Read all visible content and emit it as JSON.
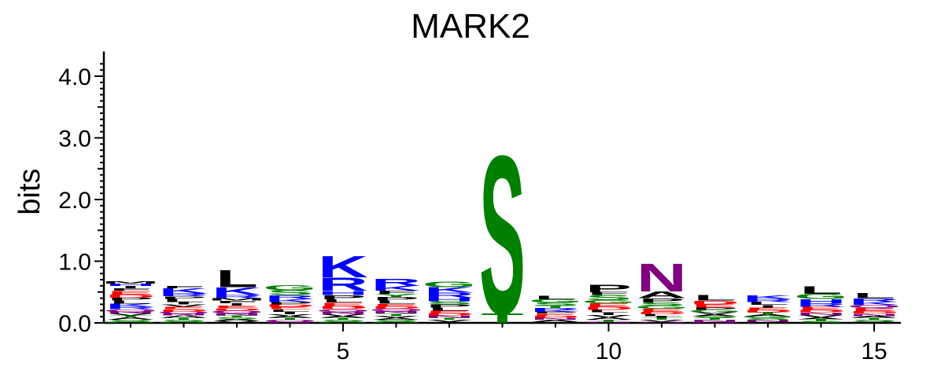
{
  "chart_data": {
    "type": "sequence-logo",
    "title": "MARK2",
    "ylabel": "bits",
    "xlabel": "",
    "ylim": [
      0,
      4.3
    ],
    "y_ticks": [
      0.0,
      1.0,
      2.0,
      3.0,
      4.0
    ],
    "y_tick_labels": [
      "0.0",
      "1.0",
      "2.0",
      "3.0",
      "4.0"
    ],
    "x_ticks": [
      5,
      10,
      15
    ],
    "x_tick_labels": [
      "5",
      "10",
      "15"
    ],
    "colors": {
      "basic": "#0000ff",
      "acidic": "#ff0000",
      "polar": "#008000",
      "amide": "#800080",
      "hydrophobic": "#000000"
    },
    "positions": [
      {
        "pos": 1,
        "stack": [
          [
            "G",
            0.02
          ],
          [
            "S",
            0.03
          ],
          [
            "A",
            0.04
          ],
          [
            "T",
            0.03
          ],
          [
            "V",
            0.03
          ],
          [
            "N",
            0.03
          ],
          [
            "Q",
            0.04
          ],
          [
            "R",
            0.04
          ],
          [
            "K",
            0.05
          ],
          [
            "L",
            0.05
          ],
          [
            "P",
            0.05
          ],
          [
            "D",
            0.05
          ],
          [
            "E",
            0.06
          ],
          [
            "F",
            0.04
          ],
          [
            "I",
            0.04
          ],
          [
            "H",
            0.04
          ],
          [
            "M",
            0.04
          ]
        ]
      },
      {
        "pos": 2,
        "stack": [
          [
            "G",
            0.02
          ],
          [
            "S",
            0.03
          ],
          [
            "T",
            0.03
          ],
          [
            "A",
            0.04
          ],
          [
            "N",
            0.03
          ],
          [
            "Q",
            0.03
          ],
          [
            "D",
            0.04
          ],
          [
            "E",
            0.04
          ],
          [
            "V",
            0.04
          ],
          [
            "I",
            0.04
          ],
          [
            "L",
            0.05
          ],
          [
            "P",
            0.04
          ],
          [
            "R",
            0.05
          ],
          [
            "K",
            0.08
          ],
          [
            "F",
            0.04
          ]
        ]
      },
      {
        "pos": 3,
        "stack": [
          [
            "V",
            0.03
          ],
          [
            "A",
            0.03
          ],
          [
            "S",
            0.03
          ],
          [
            "T",
            0.03
          ],
          [
            "N",
            0.04
          ],
          [
            "Q",
            0.04
          ],
          [
            "D",
            0.04
          ],
          [
            "E",
            0.04
          ],
          [
            "I",
            0.04
          ],
          [
            "F",
            0.04
          ],
          [
            "M",
            0.04
          ],
          [
            "R",
            0.05
          ],
          [
            "K",
            0.13
          ],
          [
            "L",
            0.29
          ]
        ]
      },
      {
        "pos": 4,
        "stack": [
          [
            "N",
            0.02
          ],
          [
            "Q",
            0.03
          ],
          [
            "T",
            0.03
          ],
          [
            "A",
            0.03
          ],
          [
            "V",
            0.03
          ],
          [
            "I",
            0.04
          ],
          [
            "L",
            0.04
          ],
          [
            "E",
            0.04
          ],
          [
            "D",
            0.04
          ],
          [
            "P",
            0.04
          ],
          [
            "K",
            0.05
          ],
          [
            "R",
            0.06
          ],
          [
            "S",
            0.08
          ],
          [
            "G",
            0.08
          ]
        ]
      },
      {
        "pos": 5,
        "stack": [
          [
            "G",
            0.02
          ],
          [
            "S",
            0.03
          ],
          [
            "T",
            0.03
          ],
          [
            "A",
            0.03
          ],
          [
            "V",
            0.03
          ],
          [
            "N",
            0.04
          ],
          [
            "Q",
            0.04
          ],
          [
            "D",
            0.05
          ],
          [
            "E",
            0.06
          ],
          [
            "L",
            0.05
          ],
          [
            "P",
            0.07
          ],
          [
            "H",
            0.07
          ],
          [
            "R",
            0.22
          ],
          [
            "K",
            0.36
          ]
        ]
      },
      {
        "pos": 6,
        "stack": [
          [
            "G",
            0.02
          ],
          [
            "S",
            0.03
          ],
          [
            "A",
            0.03
          ],
          [
            "V",
            0.03
          ],
          [
            "T",
            0.04
          ],
          [
            "N",
            0.04
          ],
          [
            "Q",
            0.04
          ],
          [
            "D",
            0.04
          ],
          [
            "E",
            0.04
          ],
          [
            "L",
            0.05
          ],
          [
            "P",
            0.06
          ],
          [
            "Y",
            0.05
          ],
          [
            "F",
            0.05
          ],
          [
            "K",
            0.08
          ],
          [
            "R",
            0.12
          ]
        ]
      },
      {
        "pos": 7,
        "stack": [
          [
            "A",
            0.02
          ],
          [
            "V",
            0.03
          ],
          [
            "T",
            0.03
          ],
          [
            "N",
            0.04
          ],
          [
            "D",
            0.04
          ],
          [
            "E",
            0.04
          ],
          [
            "L",
            0.05
          ],
          [
            "P",
            0.05
          ],
          [
            "S",
            0.05
          ],
          [
            "H",
            0.06
          ],
          [
            "R",
            0.08
          ],
          [
            "K",
            0.09
          ],
          [
            "G",
            0.09
          ]
        ]
      },
      {
        "pos": 8,
        "stack": [
          [
            "T",
            0.16
          ],
          [
            "S",
            2.64
          ]
        ]
      },
      {
        "pos": 9,
        "stack": [
          [
            "V",
            0.02
          ],
          [
            "A",
            0.03
          ],
          [
            "N",
            0.03
          ],
          [
            "D",
            0.03
          ],
          [
            "E",
            0.04
          ],
          [
            "P",
            0.03
          ],
          [
            "K",
            0.03
          ],
          [
            "R",
            0.03
          ],
          [
            "T",
            0.04
          ],
          [
            "S",
            0.05
          ],
          [
            "G",
            0.05
          ],
          [
            "L",
            0.06
          ]
        ]
      },
      {
        "pos": 10,
        "stack": [
          [
            "N",
            0.02
          ],
          [
            "T",
            0.03
          ],
          [
            "A",
            0.04
          ],
          [
            "V",
            0.04
          ],
          [
            "I",
            0.04
          ],
          [
            "L",
            0.04
          ],
          [
            "D",
            0.05
          ],
          [
            "E",
            0.06
          ],
          [
            "G",
            0.05
          ],
          [
            "S",
            0.08
          ],
          [
            "F",
            0.05
          ],
          [
            "P",
            0.13
          ]
        ]
      },
      {
        "pos": 11,
        "stack": [
          [
            "Q",
            0.02
          ],
          [
            "V",
            0.03
          ],
          [
            "T",
            0.03
          ],
          [
            "I",
            0.03
          ],
          [
            "L",
            0.03
          ],
          [
            "D",
            0.04
          ],
          [
            "E",
            0.05
          ],
          [
            "G",
            0.05
          ],
          [
            "S",
            0.05
          ],
          [
            "P",
            0.07
          ],
          [
            "A",
            0.11
          ],
          [
            "N",
            0.47
          ]
        ]
      },
      {
        "pos": 12,
        "stack": [
          [
            "Q",
            0.02
          ],
          [
            "N",
            0.03
          ],
          [
            "T",
            0.03
          ],
          [
            "S",
            0.03
          ],
          [
            "A",
            0.03
          ],
          [
            "V",
            0.03
          ],
          [
            "G",
            0.04
          ],
          [
            "P",
            0.04
          ],
          [
            "E",
            0.05
          ],
          [
            "D",
            0.06
          ],
          [
            "L",
            0.09
          ]
        ]
      },
      {
        "pos": 13,
        "stack": [
          [
            "V",
            0.02
          ],
          [
            "N",
            0.03
          ],
          [
            "S",
            0.03
          ],
          [
            "G",
            0.03
          ],
          [
            "A",
            0.03
          ],
          [
            "T",
            0.03
          ],
          [
            "D",
            0.04
          ],
          [
            "E",
            0.04
          ],
          [
            "I",
            0.04
          ],
          [
            "L",
            0.05
          ],
          [
            "R",
            0.05
          ],
          [
            "K",
            0.06
          ]
        ]
      },
      {
        "pos": 14,
        "stack": [
          [
            "S",
            0.03
          ],
          [
            "T",
            0.03
          ],
          [
            "A",
            0.03
          ],
          [
            "V",
            0.04
          ],
          [
            "N",
            0.04
          ],
          [
            "D",
            0.04
          ],
          [
            "E",
            0.05
          ],
          [
            "R",
            0.06
          ],
          [
            "H",
            0.07
          ],
          [
            "G",
            0.08
          ],
          [
            "L",
            0.13
          ]
        ]
      },
      {
        "pos": 15,
        "stack": [
          [
            "V",
            0.02
          ],
          [
            "S",
            0.03
          ],
          [
            "T",
            0.03
          ],
          [
            "A",
            0.03
          ],
          [
            "N",
            0.04
          ],
          [
            "D",
            0.04
          ],
          [
            "E",
            0.05
          ],
          [
            "Q",
            0.05
          ],
          [
            "K",
            0.05
          ],
          [
            "R",
            0.06
          ],
          [
            "L",
            0.08
          ]
        ]
      }
    ]
  }
}
